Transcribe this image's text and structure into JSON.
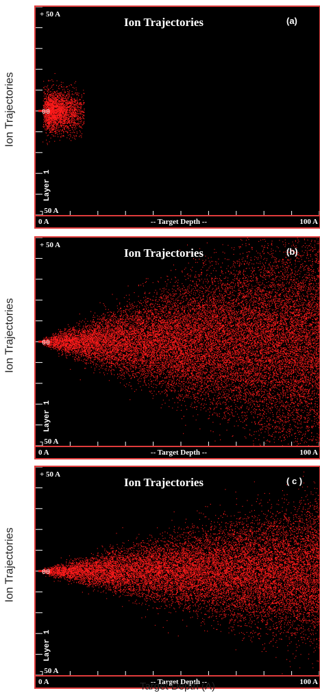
{
  "figure": {
    "left_axis_label": "Ion Trajectories",
    "bottom_axis_label": "Target Depth (A)"
  },
  "colors": {
    "ion": "#ff1a1a",
    "frame": "#e03c3c",
    "background": "#000000",
    "text": "#ffffff"
  },
  "panels": [
    {
      "title": "Ion Trajectories",
      "panel_label": "(a)",
      "y_top_label": "+ 50 A",
      "y_bottom_label": "- 50 A",
      "x_left_label": "0 A",
      "x_right_label": "100 A",
      "x_axis_label": "-- Target Depth --",
      "side_label": "Layer 1",
      "origin_label": "00"
    },
    {
      "title": "Ion Trajectories",
      "panel_label": "(b)",
      "y_top_label": "+ 50 A",
      "y_bottom_label": "- 50 A",
      "x_left_label": "0 A",
      "x_right_label": "100 A",
      "x_axis_label": "-- Target Depth --",
      "side_label": "Layer 1",
      "origin_label": "00"
    },
    {
      "title": "Ion Trajectories",
      "panel_label": "( c )",
      "y_top_label": "+ 50 A",
      "y_bottom_label": "- 50 A",
      "x_left_label": "0 A",
      "x_right_label": "100 A",
      "x_axis_label": "-- Target Depth --",
      "side_label": "Layer 1",
      "origin_label": "00"
    }
  ],
  "chart_data": [
    {
      "type": "scatter",
      "title": "Ion Trajectories",
      "panel": "(a)",
      "xlabel": "-- Target Depth --",
      "ylabel": "Ion Trajectories",
      "xlim": [
        0,
        100
      ],
      "ylim": [
        -50,
        50
      ],
      "x_unit": "A",
      "y_unit": "A",
      "distribution": {
        "shape": "blob",
        "x_range": [
          0,
          15
        ],
        "y_spread_at_max": 12,
        "point_count": 2600
      }
    },
    {
      "type": "scatter",
      "title": "Ion Trajectories",
      "panel": "(b)",
      "xlabel": "-- Target Depth --",
      "ylabel": "Ion Trajectories",
      "xlim": [
        0,
        100
      ],
      "ylim": [
        -50,
        50
      ],
      "x_unit": "A",
      "y_unit": "A",
      "distribution": {
        "shape": "cone",
        "x_range": [
          0,
          100
        ],
        "y_spread_at_max": 45,
        "point_count": 20000
      }
    },
    {
      "type": "scatter",
      "title": "Ion Trajectories",
      "panel": "(c)",
      "xlabel": "-- Target Depth --",
      "ylabel": "Ion Trajectories",
      "xlim": [
        0,
        100
      ],
      "ylim": [
        -50,
        50
      ],
      "x_unit": "A",
      "y_unit": "A",
      "distribution": {
        "shape": "cone",
        "x_range": [
          0,
          100
        ],
        "y_spread_at_max": 28,
        "point_count": 16000
      }
    }
  ]
}
